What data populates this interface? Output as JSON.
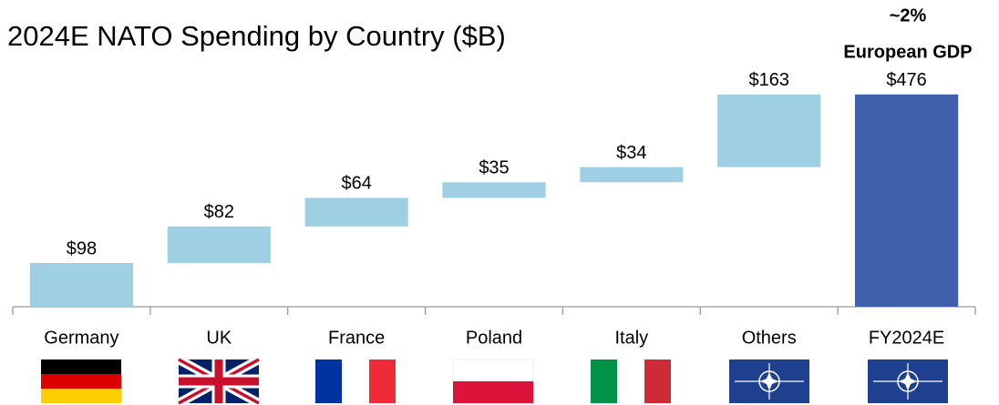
{
  "chart_data": {
    "type": "waterfall",
    "title": "2024E NATO Spending by Country ($B)",
    "annotation": [
      "~2%",
      "European GDP"
    ],
    "categories": [
      "Germany",
      "UK",
      "France",
      "Poland",
      "Italy",
      "Others",
      "FY2024E"
    ],
    "values": [
      98,
      82,
      64,
      35,
      34,
      163,
      476
    ],
    "value_labels": [
      "$98",
      "$82",
      "$64",
      "$35",
      "$34",
      "$163",
      "$476"
    ],
    "is_total": [
      false,
      false,
      false,
      false,
      false,
      false,
      true
    ],
    "color": "#9fcfe3",
    "total_color": "#3f5fab",
    "ylim": [
      0,
      500
    ]
  }
}
